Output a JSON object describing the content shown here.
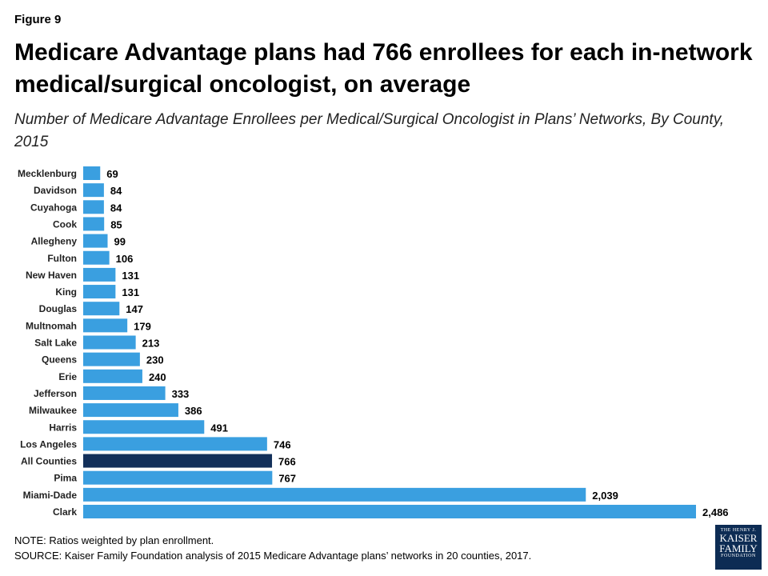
{
  "header": {
    "figure_label": "Figure 9",
    "title": "Medicare Advantage plans had 766 enrollees for each in-network medical/surgical oncologist, on average",
    "subtitle": "Number of Medicare Advantage Enrollees per Medical/Surgical Oncologist in Plans’ Networks, By County, 2015"
  },
  "footer": {
    "note": "NOTE: Ratios weighted by plan enrollment.",
    "source": "SOURCE: Kaiser Family Foundation  analysis of 2015 Medicare Advantage plans’ networks in 20 counties, 2017."
  },
  "logo": {
    "line1": "THE HENRY J.",
    "line2": "KAISER",
    "line3": "FAMILY",
    "line4": "FOUNDATION"
  },
  "colors": {
    "bar": "#3a9fe0",
    "highlight": "#13305a"
  },
  "chart_data": {
    "type": "bar",
    "orientation": "horizontal",
    "categories": [
      "Mecklenburg",
      "Davidson",
      "Cuyahoga",
      "Cook",
      "Allegheny",
      "Fulton",
      "New Haven",
      "King",
      "Douglas",
      "Multnomah",
      "Salt Lake",
      "Queens",
      "Erie",
      "Jefferson",
      "Milwaukee",
      "Harris",
      "Los Angeles",
      "All Counties",
      "Pima",
      "Miami-Dade",
      "Clark"
    ],
    "values": [
      69,
      84,
      84,
      85,
      99,
      106,
      131,
      131,
      147,
      179,
      213,
      230,
      240,
      333,
      386,
      491,
      746,
      766,
      767,
      2039,
      2486
    ],
    "value_labels": [
      "69",
      "84",
      "84",
      "85",
      "99",
      "106",
      "131",
      "131",
      "147",
      "179",
      "213",
      "230",
      "240",
      "333",
      "386",
      "491",
      "746",
      "766",
      "767",
      "2,039",
      "2,486"
    ],
    "highlight_category": "All Counties",
    "xlim": [
      0,
      2486
    ],
    "grid": false
  }
}
